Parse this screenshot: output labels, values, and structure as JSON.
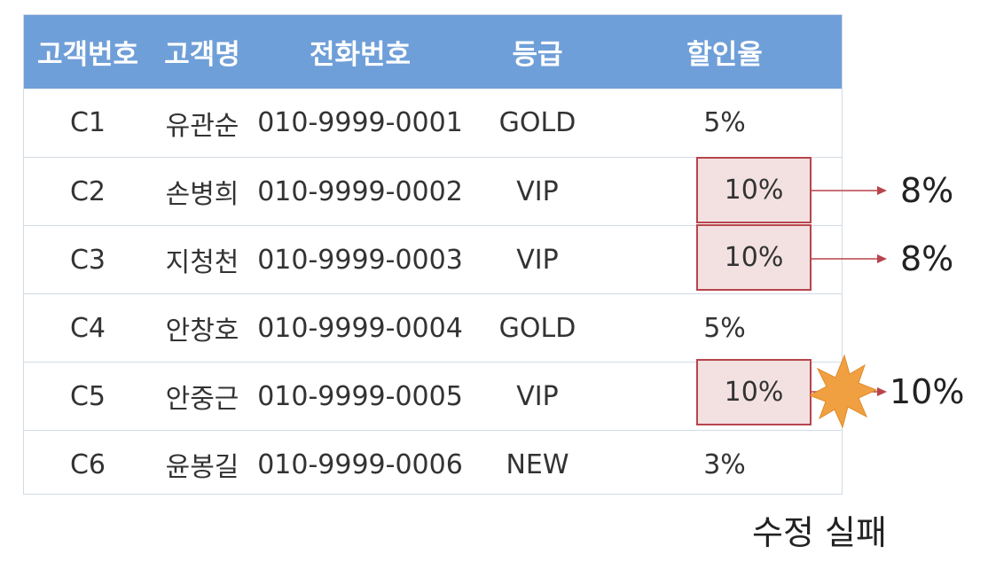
{
  "table": {
    "headers": [
      "고객번호",
      "고객명",
      "전화번호",
      "등급",
      "할인율"
    ],
    "rows": [
      [
        "C1",
        "유관순",
        "010-9999-0001",
        "GOLD",
        "5%"
      ],
      [
        "C2",
        "손병희",
        "010-9999-0002",
        "VIP",
        "10%"
      ],
      [
        "C3",
        "지청천",
        "010-9999-0003",
        "VIP",
        "10%"
      ],
      [
        "C4",
        "안창호",
        "010-9999-0004",
        "GOLD",
        "5%"
      ],
      [
        "C5",
        "안중근",
        "010-9999-0005",
        "VIP",
        "10%"
      ],
      [
        "C6",
        "윤봉길",
        "010-9999-0006",
        "NEW",
        "3%"
      ]
    ]
  },
  "updates": [
    {
      "row": "C2",
      "old": "10%",
      "new": "8%",
      "result": "success"
    },
    {
      "row": "C3",
      "old": "10%",
      "new": "8%",
      "result": "success"
    },
    {
      "row": "C5",
      "old": "10%",
      "new": "10%",
      "result": "fail"
    }
  ],
  "fail_label": "수정 실패",
  "colors": {
    "header_bg": "#6f9fd8",
    "highlight_fill": "#f3e1e1",
    "highlight_border": "#b8444c",
    "arrow": "#b8444c",
    "burst": "#f0a040"
  },
  "icons": {
    "fail_marker": "explosion-burst-icon"
  }
}
